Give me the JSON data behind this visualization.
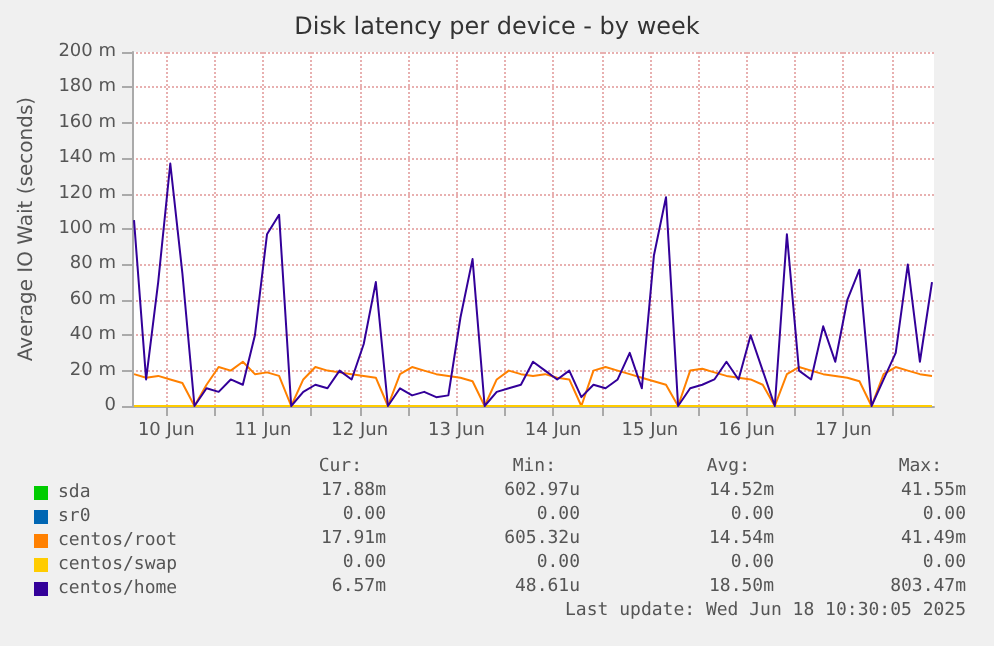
{
  "chart_data": {
    "type": "line",
    "title": "Disk latency per device - by week",
    "ylabel": "Average IO Wait (seconds)",
    "x": [
      "2025-06-10T04:00",
      "2025-06-10T07:00",
      "2025-06-10T10:00",
      "2025-06-10T13:00",
      "2025-06-10T16:00",
      "2025-06-10T19:00",
      "2025-06-10T22:00",
      "2025-06-11T01:00",
      "2025-06-11T04:00",
      "2025-06-11T07:00",
      "2025-06-11T10:00",
      "2025-06-11T13:00",
      "2025-06-11T16:00",
      "2025-06-11T19:00",
      "2025-06-11T22:00",
      "2025-06-12T01:00",
      "2025-06-12T04:00",
      "2025-06-12T07:00",
      "2025-06-12T10:00",
      "2025-06-12T13:00",
      "2025-06-12T16:00",
      "2025-06-12T19:00",
      "2025-06-12T22:00",
      "2025-06-13T01:00",
      "2025-06-13T04:00",
      "2025-06-13T07:00",
      "2025-06-13T10:00",
      "2025-06-13T13:00",
      "2025-06-13T16:00",
      "2025-06-13T19:00",
      "2025-06-13T22:00",
      "2025-06-14T01:00",
      "2025-06-14T04:00",
      "2025-06-14T07:00",
      "2025-06-14T10:00",
      "2025-06-14T13:00",
      "2025-06-14T16:00",
      "2025-06-14T19:00",
      "2025-06-14T22:00",
      "2025-06-15T01:00",
      "2025-06-15T04:00",
      "2025-06-15T07:00",
      "2025-06-15T10:00",
      "2025-06-15T13:00",
      "2025-06-15T16:00",
      "2025-06-15T19:00",
      "2025-06-15T22:00",
      "2025-06-16T01:00",
      "2025-06-16T04:00",
      "2025-06-16T07:00",
      "2025-06-16T10:00",
      "2025-06-16T13:00",
      "2025-06-16T16:00",
      "2025-06-16T19:00",
      "2025-06-16T22:00",
      "2025-06-17T01:00",
      "2025-06-17T04:00",
      "2025-06-17T07:00",
      "2025-06-17T10:00",
      "2025-06-17T13:00",
      "2025-06-17T16:00",
      "2025-06-17T19:00",
      "2025-06-17T22:00",
      "2025-06-18T01:00",
      "2025-06-18T04:00",
      "2025-06-18T07:00",
      "2025-06-18T10:00"
    ],
    "series": [
      {
        "name": "sda",
        "color": "#00cc00",
        "values": [
          null,
          null,
          null,
          null,
          null,
          null,
          null,
          null,
          null,
          null,
          null,
          null,
          null,
          null,
          null,
          null,
          null,
          null,
          null,
          null,
          null,
          null,
          null,
          null,
          null,
          null,
          null,
          null,
          null,
          null,
          null,
          null,
          null,
          null,
          null,
          null,
          null,
          null,
          null,
          null,
          null,
          null,
          null,
          null,
          null,
          null,
          null,
          null,
          null,
          null,
          null,
          null,
          null,
          null,
          null,
          null,
          null,
          null,
          null,
          null,
          null,
          null,
          null,
          null,
          null,
          null,
          null
        ]
      },
      {
        "name": "sr0",
        "color": "#0066b3",
        "values": [
          null,
          null,
          null,
          null,
          null,
          null,
          null,
          null,
          null,
          null,
          null,
          null,
          null,
          null,
          null,
          null,
          null,
          null,
          null,
          null,
          null,
          null,
          null,
          null,
          null,
          null,
          null,
          null,
          null,
          null,
          null,
          null,
          null,
          null,
          null,
          null,
          null,
          null,
          null,
          null,
          null,
          null,
          null,
          null,
          null,
          null,
          null,
          null,
          null,
          null,
          null,
          null,
          null,
          null,
          null,
          null,
          null,
          null,
          null,
          null,
          null,
          null,
          null,
          null,
          null,
          null,
          null
        ]
      },
      {
        "name": "centos/root",
        "color": "#ff8000",
        "values": [
          18,
          16,
          17,
          15,
          13,
          0,
          12,
          22,
          20,
          25,
          18,
          19,
          17,
          0,
          15,
          22,
          20,
          19,
          18,
          17,
          16,
          0,
          18,
          22,
          20,
          18,
          17,
          16,
          14,
          0,
          15,
          20,
          18,
          17,
          18,
          16,
          15,
          0,
          20,
          22,
          20,
          18,
          16,
          14,
          12,
          0,
          20,
          21,
          19,
          17,
          16,
          15,
          12,
          0,
          18,
          22,
          20,
          18,
          17,
          16,
          14,
          0,
          18,
          22,
          20,
          18,
          17
        ]
      },
      {
        "name": "centos/swap",
        "color": "#ffcc00",
        "values": [
          0,
          0,
          0,
          0,
          0,
          0,
          0,
          0,
          0,
          0,
          0,
          0,
          0,
          0,
          0,
          0,
          0,
          0,
          0,
          0,
          0,
          0,
          0,
          0,
          0,
          0,
          0,
          0,
          0,
          0,
          0,
          0,
          0,
          0,
          0,
          0,
          0,
          0,
          0,
          0,
          0,
          0,
          0,
          0,
          0,
          0,
          0,
          0,
          0,
          0,
          0,
          0,
          0,
          0,
          0,
          0,
          0,
          0,
          0,
          0,
          0,
          0,
          0,
          0,
          0,
          0,
          0
        ]
      },
      {
        "name": "centos/home",
        "color": "#330099",
        "values": [
          105,
          15,
          70,
          137,
          75,
          0,
          10,
          8,
          15,
          12,
          40,
          97,
          108,
          0,
          8,
          12,
          10,
          20,
          15,
          35,
          70,
          0,
          10,
          6,
          8,
          5,
          6,
          50,
          83,
          0,
          8,
          10,
          12,
          25,
          20,
          15,
          20,
          5,
          12,
          10,
          15,
          30,
          10,
          85,
          118,
          0,
          10,
          12,
          15,
          25,
          15,
          40,
          20,
          0,
          97,
          20,
          15,
          45,
          25,
          60,
          77,
          0,
          15,
          30,
          80,
          25,
          70
        ]
      }
    ],
    "xlim": [
      "2025-06-10T03:30",
      "2025-06-18T10:30"
    ],
    "xticks": [
      {
        "value": "2025-06-10T12:00",
        "label": "10 Jun"
      },
      {
        "value": "2025-06-11T00:00",
        "label": null
      },
      {
        "value": "2025-06-11T12:00",
        "label": "11 Jun"
      },
      {
        "value": "2025-06-12T00:00",
        "label": null
      },
      {
        "value": "2025-06-12T12:00",
        "label": "12 Jun"
      },
      {
        "value": "2025-06-13T00:00",
        "label": null
      },
      {
        "value": "2025-06-13T12:00",
        "label": "13 Jun"
      },
      {
        "value": "2025-06-14T00:00",
        "label": null
      },
      {
        "value": "2025-06-14T12:00",
        "label": "14 Jun"
      },
      {
        "value": "2025-06-15T00:00",
        "label": null
      },
      {
        "value": "2025-06-15T12:00",
        "label": "15 Jun"
      },
      {
        "value": "2025-06-16T00:00",
        "label": null
      },
      {
        "value": "2025-06-16T12:00",
        "label": "16 Jun"
      },
      {
        "value": "2025-06-17T00:00",
        "label": null
      },
      {
        "value": "2025-06-17T12:00",
        "label": "17 Jun"
      },
      {
        "value": "2025-06-18T00:00",
        "label": null
      }
    ],
    "ylim": [
      0,
      200
    ],
    "yticks": [
      0,
      {
        "value": 20,
        "label": "20 m"
      },
      {
        "value": 40,
        "label": "40 m"
      },
      {
        "value": 60,
        "label": "60 m"
      },
      {
        "value": 80,
        "label": "80 m"
      },
      {
        "value": 100,
        "label": "100 m"
      },
      {
        "value": 120,
        "label": "120 m"
      },
      {
        "value": 140,
        "label": "140 m"
      },
      {
        "value": 160,
        "label": "160 m"
      },
      {
        "value": 180,
        "label": "180 m"
      },
      {
        "value": 200,
        "label": "200 m"
      }
    ],
    "grid": true,
    "legend": "bottom left",
    "annotations": [
      "Cur:",
      "Min:",
      "Avg:",
      "Max:",
      "17.88m",
      "602.97u",
      "14.52m",
      "41.55m",
      "0.00",
      "0.00",
      "0.00",
      "0.00",
      "17.91m",
      "605.32u",
      "14.54m",
      "41.49m",
      "0.00",
      "0.00",
      "0.00",
      "0.00",
      "6.57m",
      "48.61u",
      "18.50m",
      "803.47m",
      "Last update: Wed Jun 18 10:30:05 2025"
    ]
  }
}
